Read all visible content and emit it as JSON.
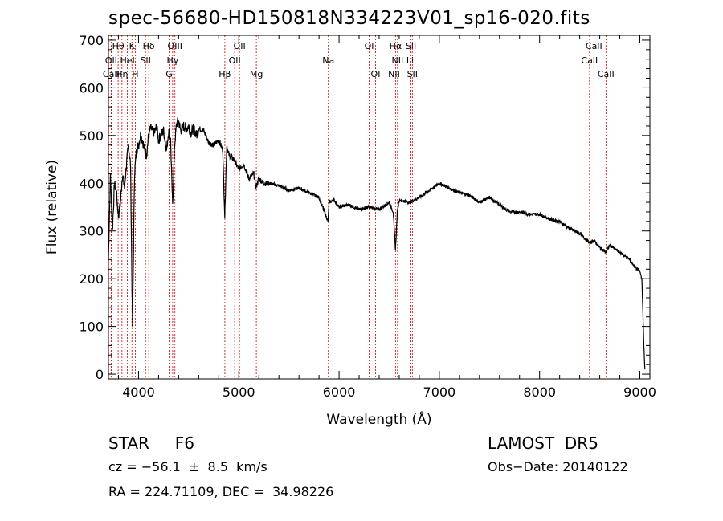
{
  "chart_data": {
    "type": "line",
    "title": "spec-56680-HD150818N334223V01_sp16-020.fits",
    "xlabel": "Wavelength (Å)",
    "ylabel": "Flux (relative)",
    "xlim": [
      3700,
      9100
    ],
    "ylim": [
      -10,
      710
    ],
    "xticks": [
      4000,
      5000,
      6000,
      7000,
      8000,
      9000
    ],
    "yticks": [
      0,
      100,
      200,
      300,
      400,
      500,
      600,
      700
    ],
    "grid": false,
    "line_color": "#000000",
    "marker_color": "#cc0000",
    "series": [
      {
        "x": [
          3700,
          3720,
          3740,
          3760,
          3780,
          3800,
          3820,
          3840,
          3860,
          3880,
          3900,
          3920,
          3940,
          3960,
          3980,
          4000,
          4020,
          4040,
          4060,
          4080,
          4100,
          4120,
          4140,
          4160,
          4180,
          4200,
          4220,
          4250,
          4280,
          4300,
          4320,
          4340,
          4360,
          4380,
          4400,
          4420,
          4450,
          4480,
          4500,
          4520,
          4550,
          4580,
          4600,
          4650,
          4700,
          4750,
          4800,
          4840,
          4860,
          4880,
          4900,
          4950,
          5000,
          5050,
          5100,
          5150,
          5170,
          5200,
          5250,
          5300,
          5400,
          5500,
          5600,
          5700,
          5800,
          5890,
          5900,
          5950,
          6000,
          6100,
          6200,
          6300,
          6400,
          6500,
          6540,
          6563,
          6580,
          6600,
          6700,
          6800,
          6900,
          7000,
          7100,
          7200,
          7300,
          7400,
          7500,
          7600,
          7700,
          7800,
          7900,
          8000,
          8100,
          8200,
          8300,
          8400,
          8498,
          8542,
          8600,
          8662,
          8700,
          8800,
          8900,
          8950,
          9000,
          9020,
          9040,
          9050
        ],
        "y": [
          240,
          420,
          300,
          400,
          380,
          330,
          360,
          420,
          390,
          440,
          480,
          440,
          100,
          420,
          470,
          480,
          500,
          490,
          470,
          460,
          500,
          515,
          510,
          505,
          520,
          490,
          500,
          510,
          470,
          510,
          490,
          350,
          480,
          525,
          530,
          510,
          520,
          515,
          520,
          505,
          515,
          500,
          515,
          510,
          485,
          480,
          490,
          470,
          330,
          480,
          460,
          450,
          430,
          440,
          410,
          420,
          390,
          410,
          400,
          400,
          395,
          385,
          390,
          380,
          370,
          320,
          360,
          365,
          350,
          355,
          345,
          350,
          345,
          360,
          340,
          260,
          340,
          365,
          360,
          370,
          385,
          400,
          390,
          380,
          375,
          360,
          370,
          355,
          340,
          340,
          335,
          335,
          325,
          320,
          305,
          295,
          275,
          280,
          265,
          255,
          270,
          255,
          240,
          225,
          215,
          200,
          60,
          10
        ]
      }
    ],
    "line_markers": [
      {
        "label": "Hθ",
        "x": 3797,
        "row": 1
      },
      {
        "label": "K",
        "x": 3934,
        "row": 1
      },
      {
        "label": "Hδ",
        "x": 4102,
        "row": 1
      },
      {
        "label": "OIII",
        "x": 4363,
        "row": 1
      },
      {
        "label": "OII",
        "x": 5007,
        "row": 1
      },
      {
        "label": "OI",
        "x": 6300,
        "row": 1
      },
      {
        "label": "Hα",
        "x": 6563,
        "row": 1
      },
      {
        "label": "SII",
        "x": 6717,
        "row": 1
      },
      {
        "label": "CaII",
        "x": 8542,
        "row": 1
      },
      {
        "label": "OII",
        "x": 3727,
        "row": 2
      },
      {
        "label": "HeI",
        "x": 3889,
        "row": 2
      },
      {
        "label": "SII",
        "x": 4070,
        "row": 2
      },
      {
        "label": "Hγ",
        "x": 4340,
        "row": 2
      },
      {
        "label": "OII",
        "x": 4959,
        "row": 2
      },
      {
        "label": "Na",
        "x": 5893,
        "row": 2
      },
      {
        "label": "NII",
        "x": 6583,
        "row": 2
      },
      {
        "label": "Li",
        "x": 6708,
        "row": 2
      },
      {
        "label": "CaII",
        "x": 8498,
        "row": 2
      },
      {
        "label": "CaII",
        "x": 3727,
        "row": 3
      },
      {
        "label": "Hη",
        "x": 3835,
        "row": 3
      },
      {
        "label": "H",
        "x": 3968,
        "row": 3
      },
      {
        "label": "G",
        "x": 4305,
        "row": 3
      },
      {
        "label": "Hβ",
        "x": 4861,
        "row": 3
      },
      {
        "label": "Mg",
        "x": 5175,
        "row": 3
      },
      {
        "label": "OI",
        "x": 6364,
        "row": 3
      },
      {
        "label": "NII",
        "x": 6548,
        "row": 3
      },
      {
        "label": "SII",
        "x": 6731,
        "row": 3
      },
      {
        "label": "CaII",
        "x": 8662,
        "row": 3
      }
    ]
  },
  "info": {
    "object_class": "STAR     F6",
    "cz": "cz = −56.1  ±  8.5  km/s",
    "radec": "RA = 224.71109, DEC =  34.98226",
    "survey": "LAMOST  DR5",
    "obs_date": "Obs−Date: 20140122"
  }
}
